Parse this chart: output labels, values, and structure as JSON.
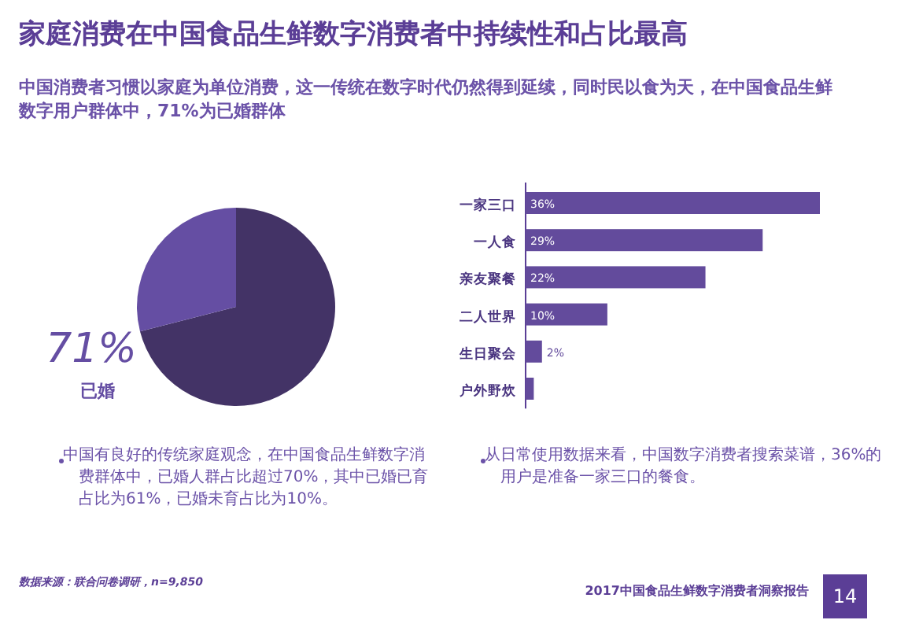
{
  "chart_data": [
    {
      "type": "pie",
      "title": "家庭消费在中国食品生鲜数字消费者中持续性和占比最高",
      "subtitle": "中国消费者习惯以家庭为单位消费，这一传统在数字时代仍然得到延续，同时民以食为天，在中国食品生鲜数字用户群体中，71%为已婚群体",
      "categories": [
        "已婚",
        null
      ],
      "values": [
        71,
        29
      ],
      "colors": [
        "#433366",
        "#654ea3"
      ],
      "value_labels": [
        "71%",
        null
      ],
      "annotations": [
        "中国有良好的传统家庭观念，在中国食品生鲜数字消费群体中，已婚人群占比超过70%，其中已婚已育占比为61%，已婚未育占比为10%。",
        "数据来源：联合问卷调研，n=9,850",
        "2017中国食品生鲜数字消费者洞察报告",
        "14"
      ]
    },
    {
      "type": "bar",
      "orientation": "horizontal",
      "categories": [
        "一家三口",
        "一人食",
        "亲友聚餐",
        "二人世界",
        "生日聚会",
        "户外野炊"
      ],
      "values": [
        36,
        29,
        22,
        10,
        2,
        1
      ],
      "color": "#634b9c",
      "value_labels": [
        "36%",
        "29%",
        "22%",
        "10%",
        "2%",
        null
      ],
      "annotations": [
        "从日常使用数据来看，中国数字消费者搜索菜谱，36%的用户是准备一家三口的餐食。"
      ]
    }
  ]
}
